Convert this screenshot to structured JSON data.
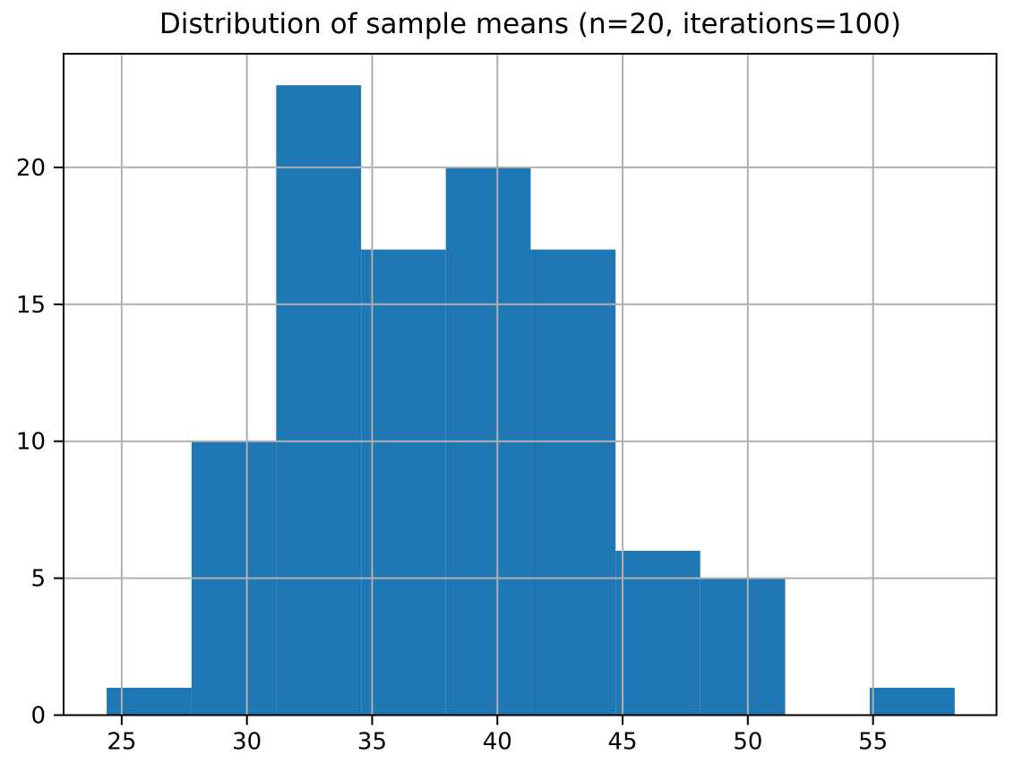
{
  "figure": {
    "background": "#ffffff"
  },
  "chart_data": {
    "type": "bar",
    "subtype": "histogram",
    "title": "Distribution of sample means (n=20, iterations=100)",
    "xlabel": "",
    "ylabel": "",
    "bin_edges": [
      24.4,
      27.79,
      31.17,
      34.56,
      37.94,
      41.33,
      44.72,
      48.1,
      51.49,
      54.87,
      58.26
    ],
    "counts": [
      1,
      10,
      23,
      17,
      20,
      17,
      6,
      5,
      0,
      1
    ],
    "total_samples": 100,
    "sample_size_n": 20,
    "iterations": 100,
    "xlim": [
      22.68,
      59.93
    ],
    "ylim": [
      0,
      24.15
    ],
    "xticks": [
      25,
      30,
      35,
      40,
      45,
      50,
      55
    ],
    "yticks": [
      0,
      5,
      10,
      15,
      20
    ],
    "grid": true,
    "grid_above_bars": true,
    "legend": "none",
    "bar_color": "#1f77b4",
    "grid_color": "#b0b0b0",
    "spine_color": "#000000",
    "text_color": "#000000"
  }
}
